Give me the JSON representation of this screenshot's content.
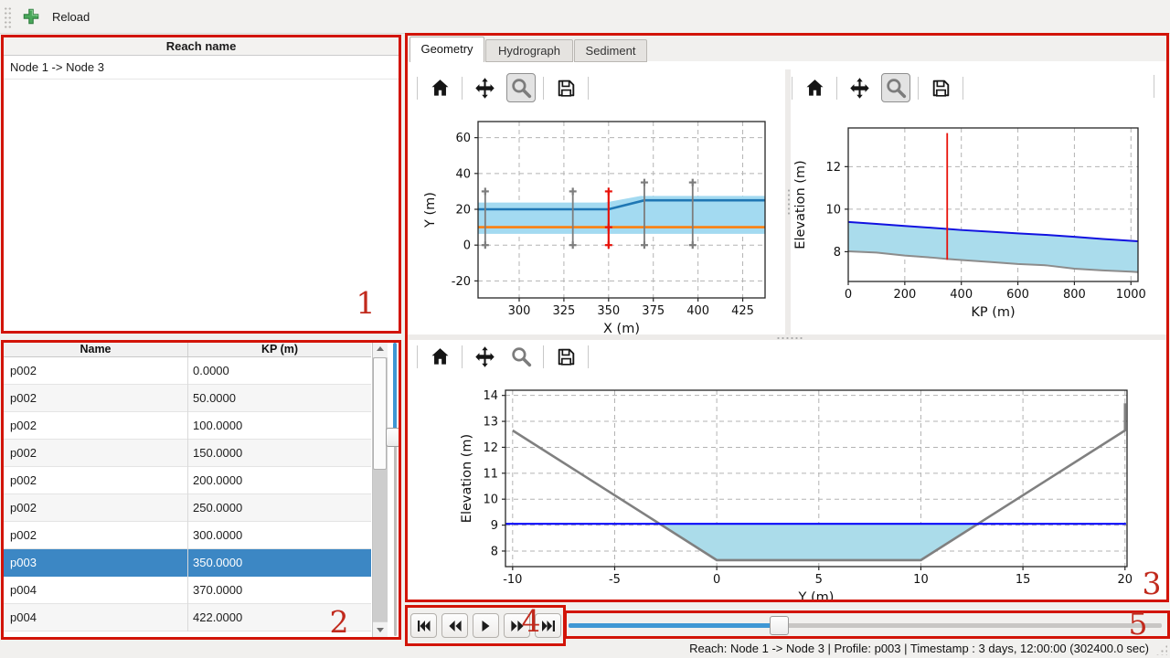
{
  "top_toolbar": {
    "reload_label": "Reload",
    "add_icon": "plus-icon"
  },
  "reach_panel": {
    "header": "Reach name",
    "items": [
      "Node 1 -> Node 3"
    ]
  },
  "profile_table": {
    "columns": [
      "Name",
      "KP (m)"
    ],
    "rows": [
      [
        "p002",
        "0.0000"
      ],
      [
        "p002",
        "50.0000"
      ],
      [
        "p002",
        "100.0000"
      ],
      [
        "p002",
        "150.0000"
      ],
      [
        "p002",
        "200.0000"
      ],
      [
        "p002",
        "250.0000"
      ],
      [
        "p002",
        "300.0000"
      ],
      [
        "p003",
        "350.0000"
      ],
      [
        "p004",
        "370.0000"
      ],
      [
        "p004",
        "422.0000"
      ]
    ],
    "selected_row": 7,
    "selected_color": "#3c87c4"
  },
  "tab_bar": {
    "tabs": [
      "Geometry",
      "Hydrograph",
      "Sediment"
    ],
    "active_tab": "Geometry"
  },
  "plot_toolbars": [
    {
      "id": "plan",
      "buttons": [
        "home",
        "pan",
        "zoom",
        "save"
      ],
      "active_button": "zoom"
    },
    {
      "id": "profile",
      "buttons": [
        "home",
        "pan",
        "zoom",
        "save"
      ],
      "active_button": "zoom"
    },
    {
      "id": "cross_section",
      "buttons": [
        "home",
        "pan",
        "zoom",
        "save"
      ],
      "active_button": null
    }
  ],
  "chart_data": [
    {
      "id": "plan",
      "type": "line",
      "title": "",
      "xlabel": "X (m)",
      "ylabel": "Y (m)",
      "xlim": [
        277,
        437.5
      ],
      "ylim": [
        -29.5,
        69
      ],
      "xticks": [
        300,
        325,
        350,
        375,
        400,
        425
      ],
      "yticks": [
        -20,
        0,
        20,
        40,
        60
      ],
      "grid": true,
      "series": [
        {
          "name": "channel-extent",
          "type": "band",
          "color": "#a3daf1",
          "x": [
            277,
            348,
            368,
            437.5
          ],
          "top": [
            23.8,
            23.8,
            27.5,
            27.5
          ],
          "bottom": [
            6.3,
            6.3,
            6.3,
            6.3
          ]
        },
        {
          "name": "bank-line",
          "type": "line",
          "color": "#1f77b4",
          "width": 2.6,
          "x": [
            277,
            350,
            370,
            437.5
          ],
          "y": [
            20,
            20,
            25,
            25
          ]
        },
        {
          "name": "centerline",
          "type": "line",
          "color": "#ff7f0e",
          "width": 2.6,
          "x": [
            277,
            437.5
          ],
          "y": [
            10,
            10
          ]
        },
        {
          "name": "profile-marker",
          "type": "vline",
          "x": 281,
          "y0": 0,
          "y1": 30,
          "color": "#7d7d7d",
          "width": 1.8,
          "markers": [
            0,
            30
          ]
        },
        {
          "name": "profile-marker",
          "type": "vline",
          "x": 330,
          "y0": 0,
          "y1": 30,
          "color": "#7d7d7d",
          "width": 1.8,
          "markers": [
            0,
            30
          ]
        },
        {
          "name": "profile-marker",
          "type": "vline",
          "x": 370,
          "y0": 0,
          "y1": 35,
          "color": "#7d7d7d",
          "width": 1.8,
          "markers": [
            0,
            35
          ]
        },
        {
          "name": "profile-marker",
          "type": "vline",
          "x": 397,
          "y0": 0,
          "y1": 35,
          "color": "#7d7d7d",
          "width": 1.8,
          "markers": [
            0,
            35
          ]
        },
        {
          "name": "selected-profile-marker",
          "type": "vline",
          "x": 350,
          "y0": 0,
          "y1": 30,
          "color": "#e8120a",
          "width": 2.2,
          "markers": [
            0,
            10,
            30
          ]
        }
      ]
    },
    {
      "id": "profile",
      "type": "area",
      "title": "",
      "xlabel": "KP (m)",
      "ylabel": "Elevation (m)",
      "xlim": [
        0,
        1025
      ],
      "ylim": [
        6.6,
        13.82
      ],
      "xticks": [
        0,
        200,
        400,
        600,
        800,
        1000
      ],
      "yticks": [
        8,
        10,
        12
      ],
      "grid": true,
      "series": [
        {
          "name": "water-body",
          "type": "band",
          "color": "#aadcec",
          "x": [
            0,
            100,
            200,
            300,
            350,
            400,
            500,
            600,
            700,
            800,
            900,
            1000,
            1025
          ],
          "top": [
            9.4,
            9.31,
            9.21,
            9.12,
            9.07,
            9.02,
            8.94,
            8.86,
            8.79,
            8.7,
            8.6,
            8.51,
            8.49
          ],
          "bottom": [
            8.02,
            7.96,
            7.82,
            7.72,
            7.66,
            7.61,
            7.52,
            7.42,
            7.36,
            7.2,
            7.12,
            7.06,
            7.04
          ]
        },
        {
          "name": "bed-elevation",
          "type": "line",
          "color": "#8c8c8c",
          "width": 2,
          "x": [
            0,
            100,
            200,
            300,
            350,
            400,
            500,
            600,
            700,
            800,
            900,
            1000,
            1025
          ],
          "y": [
            8.02,
            7.96,
            7.82,
            7.72,
            7.66,
            7.61,
            7.52,
            7.42,
            7.36,
            7.2,
            7.12,
            7.06,
            7.04
          ]
        },
        {
          "name": "water-surface",
          "type": "line",
          "color": "#1212e0",
          "width": 2,
          "x": [
            0,
            100,
            200,
            300,
            350,
            400,
            500,
            600,
            700,
            800,
            900,
            1000,
            1025
          ],
          "y": [
            9.4,
            9.31,
            9.21,
            9.12,
            9.07,
            9.02,
            8.94,
            8.86,
            8.79,
            8.7,
            8.6,
            8.51,
            8.49
          ]
        },
        {
          "name": "selected-profile-marker",
          "type": "vline",
          "x": 350,
          "y0": 7.62,
          "y1": 13.58,
          "color": "#e8120a",
          "width": 1.8,
          "markers": []
        }
      ]
    },
    {
      "id": "cross_section",
      "type": "area",
      "title": "",
      "xlabel": "Y (m)",
      "ylabel": "Elevation (m)",
      "xlim": [
        -10.35,
        20.1
      ],
      "ylim": [
        7.4,
        14.2
      ],
      "xticks": [
        -10,
        -5,
        0,
        5,
        10,
        15,
        20
      ],
      "yticks": [
        8,
        9,
        10,
        11,
        12,
        13,
        14
      ],
      "grid": true,
      "series": [
        {
          "name": "water-area",
          "type": "band",
          "color": "#abdcea",
          "x": [
            -2.82,
            0,
            10,
            12.82
          ],
          "top": [
            9.05,
            9.05,
            9.05,
            9.05
          ],
          "bottom": [
            9.05,
            7.65,
            7.65,
            9.05
          ]
        },
        {
          "name": "bed-profile",
          "type": "line",
          "color": "#808080",
          "width": 2.6,
          "x": [
            -10,
            0,
            10,
            20,
            20
          ],
          "y": [
            12.65,
            7.65,
            7.65,
            12.65,
            13.7
          ]
        },
        {
          "name": "water-level",
          "type": "line",
          "color": "#0a0afa",
          "width": 2.2,
          "x": [
            -10.35,
            20.05
          ],
          "y": [
            9.05,
            9.05
          ]
        }
      ]
    }
  ],
  "playback": {
    "buttons": [
      "skip-start",
      "rewind",
      "play",
      "fast-forward",
      "skip-end"
    ]
  },
  "time_slider": {
    "percent": 35
  },
  "profile_slider": {
    "percent": 31
  },
  "status_bar": {
    "text": "Reach: Node 1 -> Node 3 | Profile: p003 | Timestamp : 3 days, 12:00:00 (302400.0 sec)"
  },
  "annotations": {
    "labels": [
      "1",
      "2",
      "3",
      "4",
      "5"
    ],
    "color": "#d21408"
  }
}
